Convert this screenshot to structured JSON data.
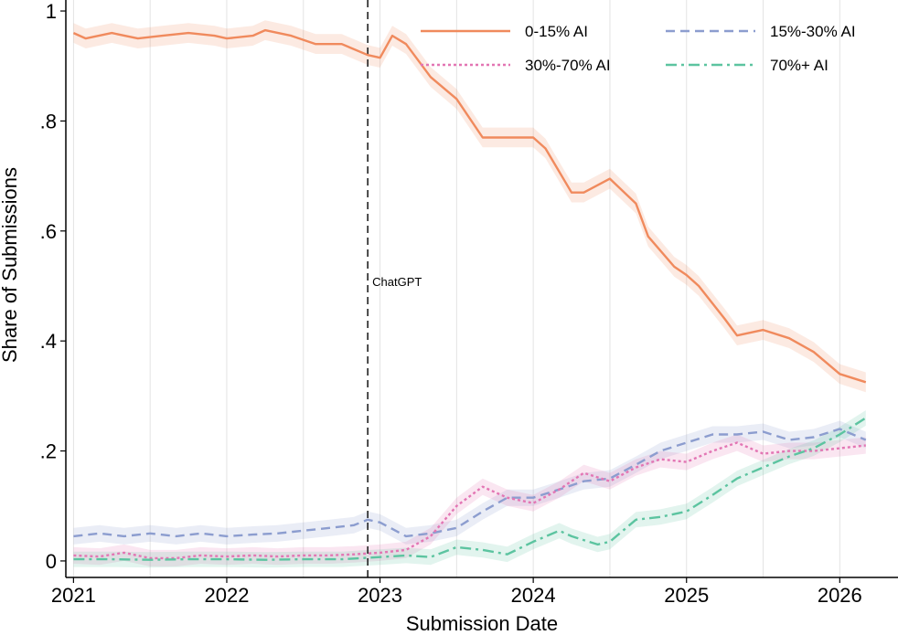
{
  "chart_data": {
    "type": "line",
    "title": "",
    "xlabel": "Submission Date",
    "ylabel": "Share of Submissions",
    "xlim": [
      2020.95,
      2026.38
    ],
    "ylim": [
      -0.03,
      1.02
    ],
    "x_ticks": [
      {
        "value": 2021,
        "label": "2021"
      },
      {
        "value": 2022,
        "label": "2022"
      },
      {
        "value": 2023,
        "label": "2023"
      },
      {
        "value": 2024,
        "label": "2024"
      },
      {
        "value": 2025,
        "label": "2025"
      },
      {
        "value": 2026,
        "label": "2026"
      }
    ],
    "y_ticks": [
      {
        "value": 0,
        "label": "0"
      },
      {
        "value": 0.2,
        "label": ".2"
      },
      {
        "value": 0.4,
        "label": ".4"
      },
      {
        "value": 0.6,
        "label": ".6"
      },
      {
        "value": 0.8,
        "label": ".8"
      },
      {
        "value": 1,
        "label": "1"
      }
    ],
    "grid": "vertical",
    "legend_position": "top-right",
    "annotation": {
      "x": 2022.92,
      "label": "ChatGPT"
    },
    "series": [
      {
        "name": "0-15% AI",
        "color": "#f08a5d",
        "style": "solid",
        "x": [
          2021.0,
          2021.08,
          2021.25,
          2021.42,
          2021.58,
          2021.75,
          2021.92,
          2022.0,
          2022.17,
          2022.25,
          2022.42,
          2022.58,
          2022.75,
          2022.92,
          2023.0,
          2023.08,
          2023.17,
          2023.33,
          2023.5,
          2023.67,
          2023.83,
          2024.0,
          2024.08,
          2024.25,
          2024.33,
          2024.5,
          2024.67,
          2024.75,
          2024.92,
          2025.0,
          2025.08,
          2025.25,
          2025.33,
          2025.5,
          2025.67,
          2025.83,
          2026.0,
          2026.17
        ],
        "y": [
          0.96,
          0.95,
          0.96,
          0.95,
          0.955,
          0.96,
          0.955,
          0.95,
          0.955,
          0.965,
          0.955,
          0.94,
          0.94,
          0.92,
          0.915,
          0.955,
          0.94,
          0.88,
          0.84,
          0.77,
          0.77,
          0.77,
          0.75,
          0.67,
          0.67,
          0.695,
          0.65,
          0.59,
          0.535,
          0.52,
          0.5,
          0.44,
          0.41,
          0.42,
          0.405,
          0.38,
          0.34,
          0.325
        ],
        "ci_halfwidth": 0.018
      },
      {
        "name": "15%-30% AI",
        "color": "#8c9dcf",
        "style": "dashed",
        "x": [
          2021.0,
          2021.17,
          2021.33,
          2021.5,
          2021.67,
          2021.83,
          2022.0,
          2022.17,
          2022.33,
          2022.5,
          2022.67,
          2022.83,
          2022.92,
          2023.0,
          2023.17,
          2023.33,
          2023.5,
          2023.67,
          2023.83,
          2024.0,
          2024.17,
          2024.33,
          2024.5,
          2024.67,
          2024.83,
          2025.0,
          2025.17,
          2025.33,
          2025.5,
          2025.67,
          2025.83,
          2026.0,
          2026.17
        ],
        "y": [
          0.045,
          0.05,
          0.045,
          0.05,
          0.045,
          0.05,
          0.045,
          0.048,
          0.05,
          0.055,
          0.06,
          0.065,
          0.075,
          0.07,
          0.045,
          0.05,
          0.06,
          0.09,
          0.115,
          0.115,
          0.13,
          0.145,
          0.15,
          0.175,
          0.2,
          0.215,
          0.23,
          0.23,
          0.235,
          0.22,
          0.225,
          0.24,
          0.22
        ],
        "ci_halfwidth": 0.015
      },
      {
        "name": "30%-70% AI",
        "color": "#e376b4",
        "style": "dotted",
        "x": [
          2021.0,
          2021.17,
          2021.33,
          2021.5,
          2021.67,
          2021.83,
          2022.0,
          2022.17,
          2022.33,
          2022.5,
          2022.67,
          2022.83,
          2023.0,
          2023.17,
          2023.33,
          2023.5,
          2023.67,
          2023.83,
          2024.0,
          2024.17,
          2024.33,
          2024.5,
          2024.67,
          2024.83,
          2025.0,
          2025.17,
          2025.33,
          2025.5,
          2025.67,
          2025.83,
          2026.0,
          2026.17
        ],
        "y": [
          0.01,
          0.008,
          0.015,
          0.005,
          0.005,
          0.01,
          0.008,
          0.01,
          0.008,
          0.01,
          0.01,
          0.012,
          0.015,
          0.02,
          0.045,
          0.1,
          0.135,
          0.115,
          0.105,
          0.13,
          0.16,
          0.145,
          0.17,
          0.185,
          0.18,
          0.2,
          0.215,
          0.195,
          0.2,
          0.2,
          0.205,
          0.21
        ],
        "ci_halfwidth": 0.015
      },
      {
        "name": "70%+ AI",
        "color": "#5cc4a0",
        "style": "dashdot",
        "x": [
          2021.0,
          2021.25,
          2021.5,
          2021.75,
          2022.0,
          2022.25,
          2022.5,
          2022.75,
          2023.0,
          2023.17,
          2023.33,
          2023.5,
          2023.67,
          2023.83,
          2024.0,
          2024.17,
          2024.25,
          2024.42,
          2024.5,
          2024.67,
          2024.83,
          2025.0,
          2025.17,
          2025.33,
          2025.5,
          2025.67,
          2025.83,
          2026.0,
          2026.17
        ],
        "y": [
          0.003,
          0.003,
          0.002,
          0.003,
          0.003,
          0.002,
          0.003,
          0.003,
          0.007,
          0.01,
          0.007,
          0.025,
          0.02,
          0.012,
          0.035,
          0.055,
          0.045,
          0.03,
          0.035,
          0.075,
          0.08,
          0.09,
          0.12,
          0.15,
          0.17,
          0.19,
          0.205,
          0.23,
          0.26
        ],
        "ci_halfwidth": 0.014
      }
    ]
  }
}
